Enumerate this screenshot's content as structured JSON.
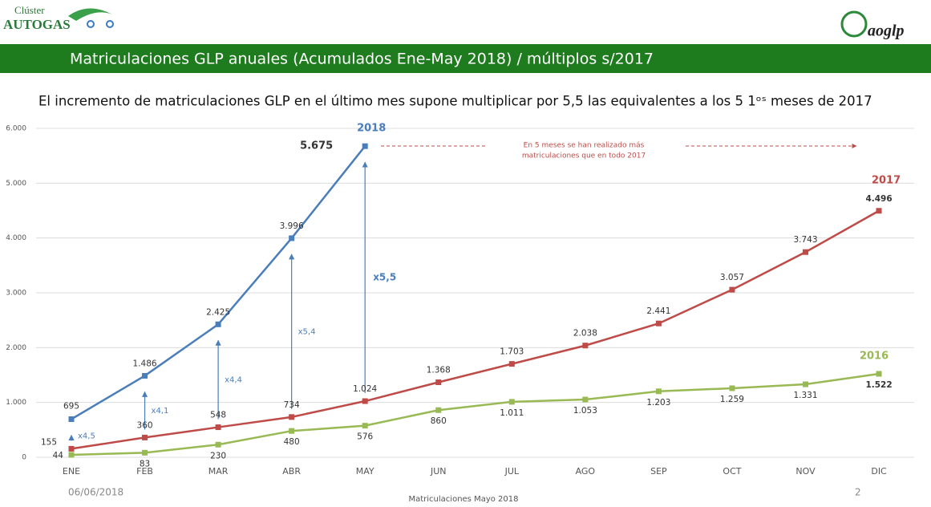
{
  "header": {
    "logo_left_small": "Clúster",
    "logo_left": "AUTOGAS",
    "logo_right": "aoglp",
    "title": "Matriculaciones GLP anuales (Acumulados Ene-May 2018) / múltiplos s/2017"
  },
  "chart_data": {
    "type": "line",
    "subtitle": "El incremento de matriculaciones GLP en el último mes supone multiplicar por 5,5 las equivalentes a los 5 1ᵒˢ meses de 2017",
    "categories": [
      "ENE",
      "FEB",
      "MAR",
      "ABR",
      "MAY",
      "JUN",
      "JUL",
      "AGO",
      "SEP",
      "OCT",
      "NOV",
      "DIC"
    ],
    "ylim": [
      0,
      6000
    ],
    "yticks": [
      0,
      {
        "value": 1000,
        "label": "1.000"
      },
      {
        "value": 2000,
        "label": "2.000"
      },
      {
        "value": 3000,
        "label": "3.000"
      },
      {
        "value": 4000,
        "label": "4.000"
      },
      {
        "value": 5000,
        "label": "5.000"
      },
      {
        "value": 6000,
        "label": "6.000"
      }
    ],
    "grid": true,
    "series": [
      {
        "name": "2018",
        "color": "#4a7ebb",
        "values": [
          695,
          1486,
          2425,
          3996,
          5675,
          null,
          null,
          null,
          null,
          null,
          null,
          null
        ],
        "value_labels": [
          "695",
          "1.486",
          "2.425",
          "3.996",
          "5.675",
          null,
          null,
          null,
          null,
          null,
          null,
          null
        ]
      },
      {
        "name": "2017",
        "color": "#be4b48",
        "values": [
          155,
          360,
          548,
          734,
          1024,
          1368,
          1703,
          2038,
          2441,
          3057,
          3743,
          4496
        ],
        "value_labels": [
          "155",
          "360",
          "548",
          "734",
          "1.024",
          "1.368",
          "1.703",
          "2.038",
          "2.441",
          "3.057",
          "3.743",
          "4.496"
        ]
      },
      {
        "name": "2016",
        "color": "#98b954",
        "values": [
          44,
          83,
          230,
          480,
          576,
          860,
          1011,
          1053,
          1203,
          1259,
          1331,
          1522
        ],
        "value_labels": [
          "44",
          "83",
          "230",
          "480",
          "576",
          "860",
          "1.011",
          "1.053",
          "1.203",
          "1.259",
          "1.331",
          "1.522"
        ]
      }
    ],
    "multipliers": [
      "x4,5",
      "x4,1",
      "x4,4",
      "x5,4",
      "x5,5"
    ],
    "annotation": [
      "En 5 meses se han realizado más",
      "matriculaciones que en todo 2017"
    ]
  },
  "footer": {
    "date": "06/06/2018",
    "center": "Matriculaciones Mayo 2018",
    "page": "2"
  }
}
